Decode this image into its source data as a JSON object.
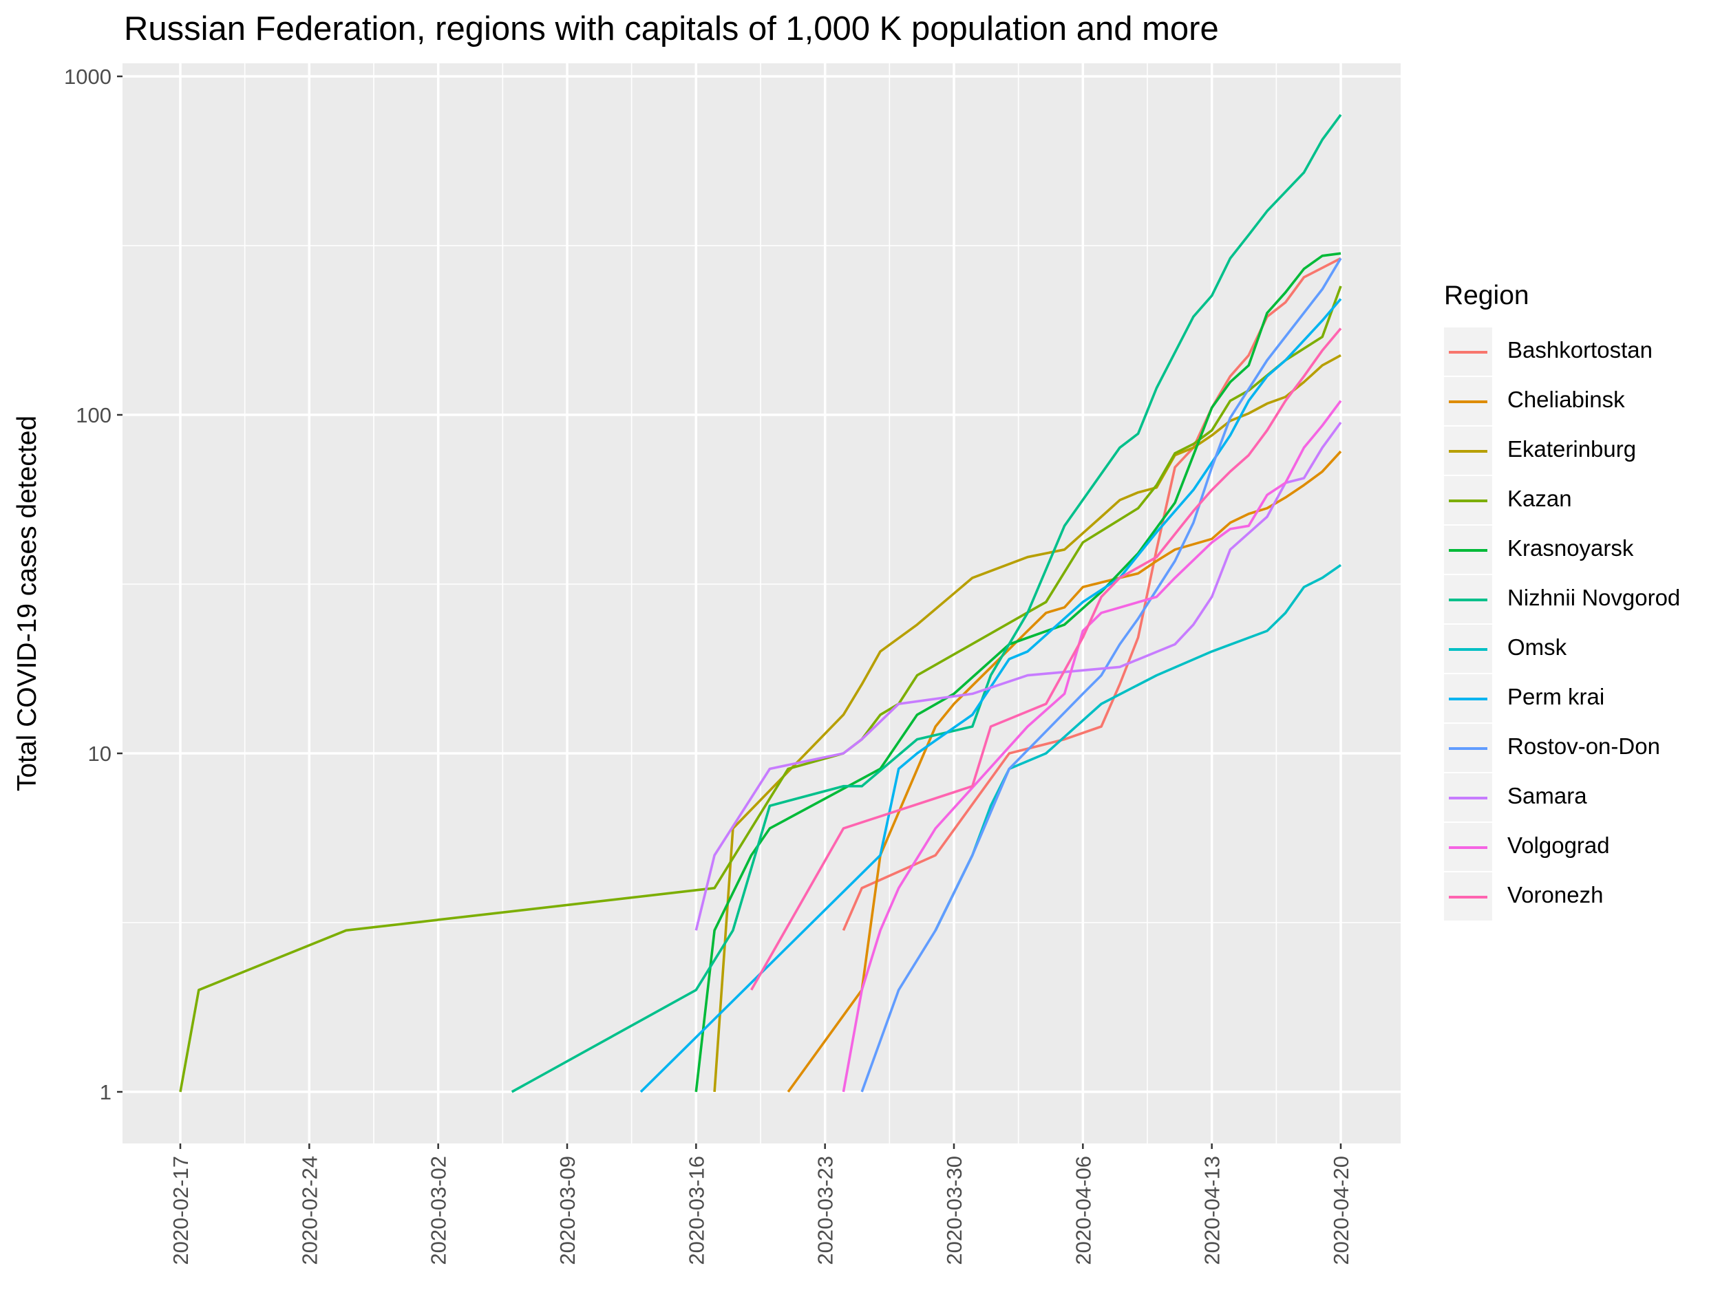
{
  "chart_data": {
    "type": "line",
    "title": "Russian Federation, regions with capitals of 1,000 K population and more",
    "xlabel": "",
    "ylabel": "Total COVID-19 cases detected",
    "y_scale": "log10",
    "ylim": [
      1,
      1000
    ],
    "xlim": [
      "2020-02-17",
      "2020-04-20"
    ],
    "x_ticks": [
      "2020-02-17",
      "2020-02-24",
      "2020-03-02",
      "2020-03-09",
      "2020-03-16",
      "2020-03-23",
      "2020-03-30",
      "2020-04-06",
      "2020-04-13",
      "2020-04-20"
    ],
    "y_ticks": [
      1,
      10,
      100,
      1000
    ],
    "y_tick_labels": [
      "1",
      "10",
      "100",
      "1000"
    ],
    "grid": true,
    "legend": {
      "title": "Region",
      "position": "right"
    },
    "series": [
      {
        "name": "Bashkortostan",
        "color": "#F8766D",
        "points": [
          [
            "2020-03-24",
            3
          ],
          [
            "2020-03-25",
            4
          ],
          [
            "2020-03-29",
            5
          ],
          [
            "2020-04-02",
            10
          ],
          [
            "2020-04-05",
            11
          ],
          [
            "2020-04-07",
            12
          ],
          [
            "2020-04-08",
            16
          ],
          [
            "2020-04-09",
            22
          ],
          [
            "2020-04-10",
            40
          ],
          [
            "2020-04-11",
            70
          ],
          [
            "2020-04-12",
            80
          ],
          [
            "2020-04-13",
            105
          ],
          [
            "2020-04-14",
            130
          ],
          [
            "2020-04-15",
            150
          ],
          [
            "2020-04-16",
            195
          ],
          [
            "2020-04-17",
            215
          ],
          [
            "2020-04-18",
            255
          ],
          [
            "2020-04-20",
            290
          ]
        ]
      },
      {
        "name": "Cheliabinsk",
        "color": "#DE8C00",
        "points": [
          [
            "2020-03-21",
            1
          ],
          [
            "2020-03-25",
            2
          ],
          [
            "2020-03-26",
            5
          ],
          [
            "2020-03-29",
            12
          ],
          [
            "2020-03-30",
            14
          ],
          [
            "2020-04-03",
            23
          ],
          [
            "2020-04-04",
            26
          ],
          [
            "2020-04-05",
            27
          ],
          [
            "2020-04-06",
            31
          ],
          [
            "2020-04-08",
            33
          ],
          [
            "2020-04-09",
            34
          ],
          [
            "2020-04-10",
            37
          ],
          [
            "2020-04-11",
            40
          ],
          [
            "2020-04-13",
            43
          ],
          [
            "2020-04-14",
            48
          ],
          [
            "2020-04-15",
            51
          ],
          [
            "2020-04-16",
            53
          ],
          [
            "2020-04-17",
            57
          ],
          [
            "2020-04-18",
            62
          ],
          [
            "2020-04-19",
            68
          ],
          [
            "2020-04-20",
            78
          ]
        ]
      },
      {
        "name": "Ekaterinburg",
        "color": "#B79F00",
        "points": [
          [
            "2020-03-17",
            1
          ],
          [
            "2020-03-18",
            6
          ],
          [
            "2020-03-24",
            13
          ],
          [
            "2020-03-25",
            16
          ],
          [
            "2020-03-26",
            20
          ],
          [
            "2020-03-28",
            24
          ],
          [
            "2020-03-31",
            33
          ],
          [
            "2020-04-03",
            38
          ],
          [
            "2020-04-05",
            40
          ],
          [
            "2020-04-07",
            50
          ],
          [
            "2020-04-08",
            56
          ],
          [
            "2020-04-09",
            59
          ],
          [
            "2020-04-10",
            61
          ],
          [
            "2020-04-11",
            76
          ],
          [
            "2020-04-12",
            80
          ],
          [
            "2020-04-13",
            87
          ],
          [
            "2020-04-14",
            96
          ],
          [
            "2020-04-15",
            101
          ],
          [
            "2020-04-16",
            108
          ],
          [
            "2020-04-17",
            113
          ],
          [
            "2020-04-18",
            125
          ],
          [
            "2020-04-19",
            140
          ],
          [
            "2020-04-20",
            150
          ]
        ]
      },
      {
        "name": "Kazan",
        "color": "#7CAE00",
        "points": [
          [
            "2020-02-17",
            1
          ],
          [
            "2020-02-18",
            2
          ],
          [
            "2020-02-26",
            3
          ],
          [
            "2020-03-17",
            4
          ],
          [
            "2020-03-19",
            6
          ],
          [
            "2020-03-21",
            9
          ],
          [
            "2020-03-24",
            10
          ],
          [
            "2020-03-25",
            11
          ],
          [
            "2020-03-26",
            13
          ],
          [
            "2020-03-27",
            14
          ],
          [
            "2020-03-28",
            17
          ],
          [
            "2020-04-04",
            28
          ],
          [
            "2020-04-06",
            42
          ],
          [
            "2020-04-09",
            53
          ],
          [
            "2020-04-10",
            62
          ],
          [
            "2020-04-11",
            77
          ],
          [
            "2020-04-12",
            82
          ],
          [
            "2020-04-13",
            90
          ],
          [
            "2020-04-14",
            110
          ],
          [
            "2020-04-15",
            118
          ],
          [
            "2020-04-17",
            145
          ],
          [
            "2020-04-19",
            170
          ],
          [
            "2020-04-20",
            240
          ]
        ]
      },
      {
        "name": "Krasnoyarsk",
        "color": "#00BA38",
        "points": [
          [
            "2020-03-16",
            1
          ],
          [
            "2020-03-17",
            3
          ],
          [
            "2020-03-19",
            5
          ],
          [
            "2020-03-20",
            6
          ],
          [
            "2020-03-26",
            9
          ],
          [
            "2020-03-28",
            13
          ],
          [
            "2020-03-30",
            15
          ],
          [
            "2020-04-02",
            21
          ],
          [
            "2020-04-05",
            24
          ],
          [
            "2020-04-07",
            30
          ],
          [
            "2020-04-09",
            39
          ],
          [
            "2020-04-11",
            55
          ],
          [
            "2020-04-13",
            105
          ],
          [
            "2020-04-14",
            125
          ],
          [
            "2020-04-15",
            140
          ],
          [
            "2020-04-16",
            200
          ],
          [
            "2020-04-17",
            230
          ],
          [
            "2020-04-18",
            270
          ],
          [
            "2020-04-19",
            295
          ],
          [
            "2020-04-20",
            300
          ]
        ]
      },
      {
        "name": "Nizhnii Novgorod",
        "color": "#00C08B",
        "points": [
          [
            "2020-03-06",
            1
          ],
          [
            "2020-03-16",
            2
          ],
          [
            "2020-03-18",
            3
          ],
          [
            "2020-03-20",
            7
          ],
          [
            "2020-03-24",
            8
          ],
          [
            "2020-03-25",
            8
          ],
          [
            "2020-03-28",
            11
          ],
          [
            "2020-03-31",
            12
          ],
          [
            "2020-04-01",
            17
          ],
          [
            "2020-04-03",
            26
          ],
          [
            "2020-04-05",
            47
          ],
          [
            "2020-04-08",
            80
          ],
          [
            "2020-04-09",
            88
          ],
          [
            "2020-04-10",
            120
          ],
          [
            "2020-04-12",
            195
          ],
          [
            "2020-04-13",
            225
          ],
          [
            "2020-04-14",
            290
          ],
          [
            "2020-04-15",
            340
          ],
          [
            "2020-04-16",
            400
          ],
          [
            "2020-04-18",
            520
          ],
          [
            "2020-04-19",
            650
          ],
          [
            "2020-04-20",
            770
          ]
        ]
      },
      {
        "name": "Omsk",
        "color": "#00BFC4",
        "points": [
          [
            "2020-03-29",
            3
          ],
          [
            "2020-03-31",
            5
          ],
          [
            "2020-04-01",
            7
          ],
          [
            "2020-04-02",
            9
          ],
          [
            "2020-04-04",
            10
          ],
          [
            "2020-04-07",
            14
          ],
          [
            "2020-04-10",
            17
          ],
          [
            "2020-04-13",
            20
          ],
          [
            "2020-04-16",
            23
          ],
          [
            "2020-04-17",
            26
          ],
          [
            "2020-04-18",
            31
          ],
          [
            "2020-04-19",
            33
          ],
          [
            "2020-04-20",
            36
          ]
        ]
      },
      {
        "name": "Perm krai",
        "color": "#00B4F0",
        "points": [
          [
            "2020-03-13",
            1
          ],
          [
            "2020-03-26",
            5
          ],
          [
            "2020-03-27",
            9
          ],
          [
            "2020-03-28",
            10
          ],
          [
            "2020-03-31",
            13
          ],
          [
            "2020-04-02",
            19
          ],
          [
            "2020-04-03",
            20
          ],
          [
            "2020-04-06",
            28
          ],
          [
            "2020-04-08",
            33
          ],
          [
            "2020-04-10",
            45
          ],
          [
            "2020-04-12",
            60
          ],
          [
            "2020-04-14",
            87
          ],
          [
            "2020-04-15",
            110
          ],
          [
            "2020-04-16",
            130
          ],
          [
            "2020-04-17",
            145
          ],
          [
            "2020-04-19",
            190
          ],
          [
            "2020-04-20",
            220
          ]
        ]
      },
      {
        "name": "Rostov-on-Don",
        "color": "#619CFF",
        "points": [
          [
            "2020-03-25",
            1
          ],
          [
            "2020-03-27",
            2
          ],
          [
            "2020-03-29",
            3
          ],
          [
            "2020-03-31",
            5
          ],
          [
            "2020-04-02",
            9
          ],
          [
            "2020-04-06",
            15
          ],
          [
            "2020-04-07",
            17
          ],
          [
            "2020-04-08",
            21
          ],
          [
            "2020-04-09",
            25
          ],
          [
            "2020-04-11",
            37
          ],
          [
            "2020-04-12",
            48
          ],
          [
            "2020-04-13",
            70
          ],
          [
            "2020-04-14",
            98
          ],
          [
            "2020-04-16",
            145
          ],
          [
            "2020-04-19",
            235
          ],
          [
            "2020-04-20",
            290
          ]
        ]
      },
      {
        "name": "Samara",
        "color": "#C77CFF",
        "points": [
          [
            "2020-03-16",
            3
          ],
          [
            "2020-03-17",
            5
          ],
          [
            "2020-03-20",
            9
          ],
          [
            "2020-03-24",
            10
          ],
          [
            "2020-03-25",
            11
          ],
          [
            "2020-03-27",
            14
          ],
          [
            "2020-03-31",
            15
          ],
          [
            "2020-04-03",
            17
          ],
          [
            "2020-04-08",
            18
          ],
          [
            "2020-04-11",
            21
          ],
          [
            "2020-04-12",
            24
          ],
          [
            "2020-04-13",
            29
          ],
          [
            "2020-04-14",
            40
          ],
          [
            "2020-04-16",
            50
          ],
          [
            "2020-04-17",
            63
          ],
          [
            "2020-04-18",
            65
          ],
          [
            "2020-04-19",
            80
          ],
          [
            "2020-04-20",
            95
          ]
        ]
      },
      {
        "name": "Volgograd",
        "color": "#F564E3",
        "points": [
          [
            "2020-03-24",
            1
          ],
          [
            "2020-03-25",
            2
          ],
          [
            "2020-03-26",
            3
          ],
          [
            "2020-03-27",
            4
          ],
          [
            "2020-03-29",
            6
          ],
          [
            "2020-04-03",
            12
          ],
          [
            "2020-04-05",
            15
          ],
          [
            "2020-04-06",
            23
          ],
          [
            "2020-04-07",
            26
          ],
          [
            "2020-04-10",
            29
          ],
          [
            "2020-04-11",
            33
          ],
          [
            "2020-04-13",
            42
          ],
          [
            "2020-04-14",
            46
          ],
          [
            "2020-04-15",
            47
          ],
          [
            "2020-04-16",
            58
          ],
          [
            "2020-04-17",
            63
          ],
          [
            "2020-04-18",
            80
          ],
          [
            "2020-04-19",
            93
          ],
          [
            "2020-04-20",
            110
          ]
        ]
      },
      {
        "name": "Voronezh",
        "color": "#FF64B0",
        "points": [
          [
            "2020-03-19",
            2
          ],
          [
            "2020-03-24",
            6
          ],
          [
            "2020-03-31",
            8
          ],
          [
            "2020-04-01",
            12
          ],
          [
            "2020-04-04",
            14
          ],
          [
            "2020-04-06",
            22
          ],
          [
            "2020-04-07",
            29
          ],
          [
            "2020-04-08",
            33
          ],
          [
            "2020-04-10",
            38
          ],
          [
            "2020-04-12",
            52
          ],
          [
            "2020-04-13",
            60
          ],
          [
            "2020-04-14",
            68
          ],
          [
            "2020-04-15",
            76
          ],
          [
            "2020-04-16",
            90
          ],
          [
            "2020-04-17",
            110
          ],
          [
            "2020-04-18",
            130
          ],
          [
            "2020-04-19",
            155
          ],
          [
            "2020-04-20",
            180
          ]
        ]
      }
    ]
  }
}
